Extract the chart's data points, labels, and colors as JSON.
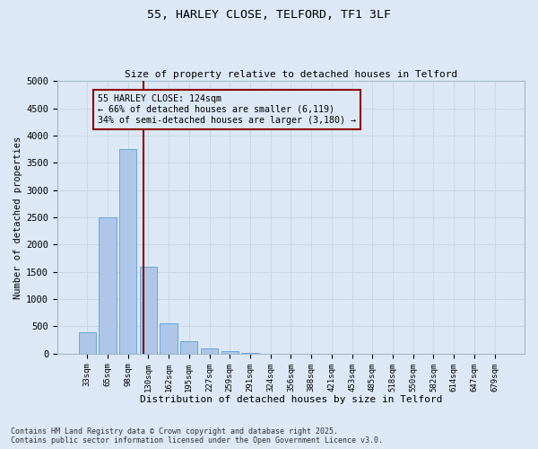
{
  "title1": "55, HARLEY CLOSE, TELFORD, TF1 3LF",
  "title2": "Size of property relative to detached houses in Telford",
  "xlabel": "Distribution of detached houses by size in Telford",
  "ylabel": "Number of detached properties",
  "categories": [
    "33sqm",
    "65sqm",
    "98sqm",
    "130sqm",
    "162sqm",
    "195sqm",
    "227sqm",
    "259sqm",
    "291sqm",
    "324sqm",
    "356sqm",
    "388sqm",
    "421sqm",
    "453sqm",
    "485sqm",
    "518sqm",
    "550sqm",
    "582sqm",
    "614sqm",
    "647sqm",
    "679sqm"
  ],
  "values": [
    400,
    2500,
    3750,
    1600,
    550,
    220,
    100,
    40,
    15,
    5,
    2,
    0,
    0,
    0,
    0,
    0,
    0,
    0,
    0,
    0,
    0
  ],
  "bar_color": "#aec6e8",
  "bar_edge_color": "#5a9fd4",
  "ylim": [
    0,
    5000
  ],
  "yticks": [
    0,
    500,
    1000,
    1500,
    2000,
    2500,
    3000,
    3500,
    4000,
    4500,
    5000
  ],
  "vline_color": "#8b0000",
  "annotation_text": "55 HARLEY CLOSE: 124sqm\n← 66% of detached houses are smaller (6,119)\n34% of semi-detached houses are larger (3,180) →",
  "annotation_box_color": "#8b0000",
  "grid_color": "#c8d8e8",
  "bg_color": "#dce8f5",
  "footer": "Contains HM Land Registry data © Crown copyright and database right 2025.\nContains public sector information licensed under the Open Government Licence v3.0."
}
